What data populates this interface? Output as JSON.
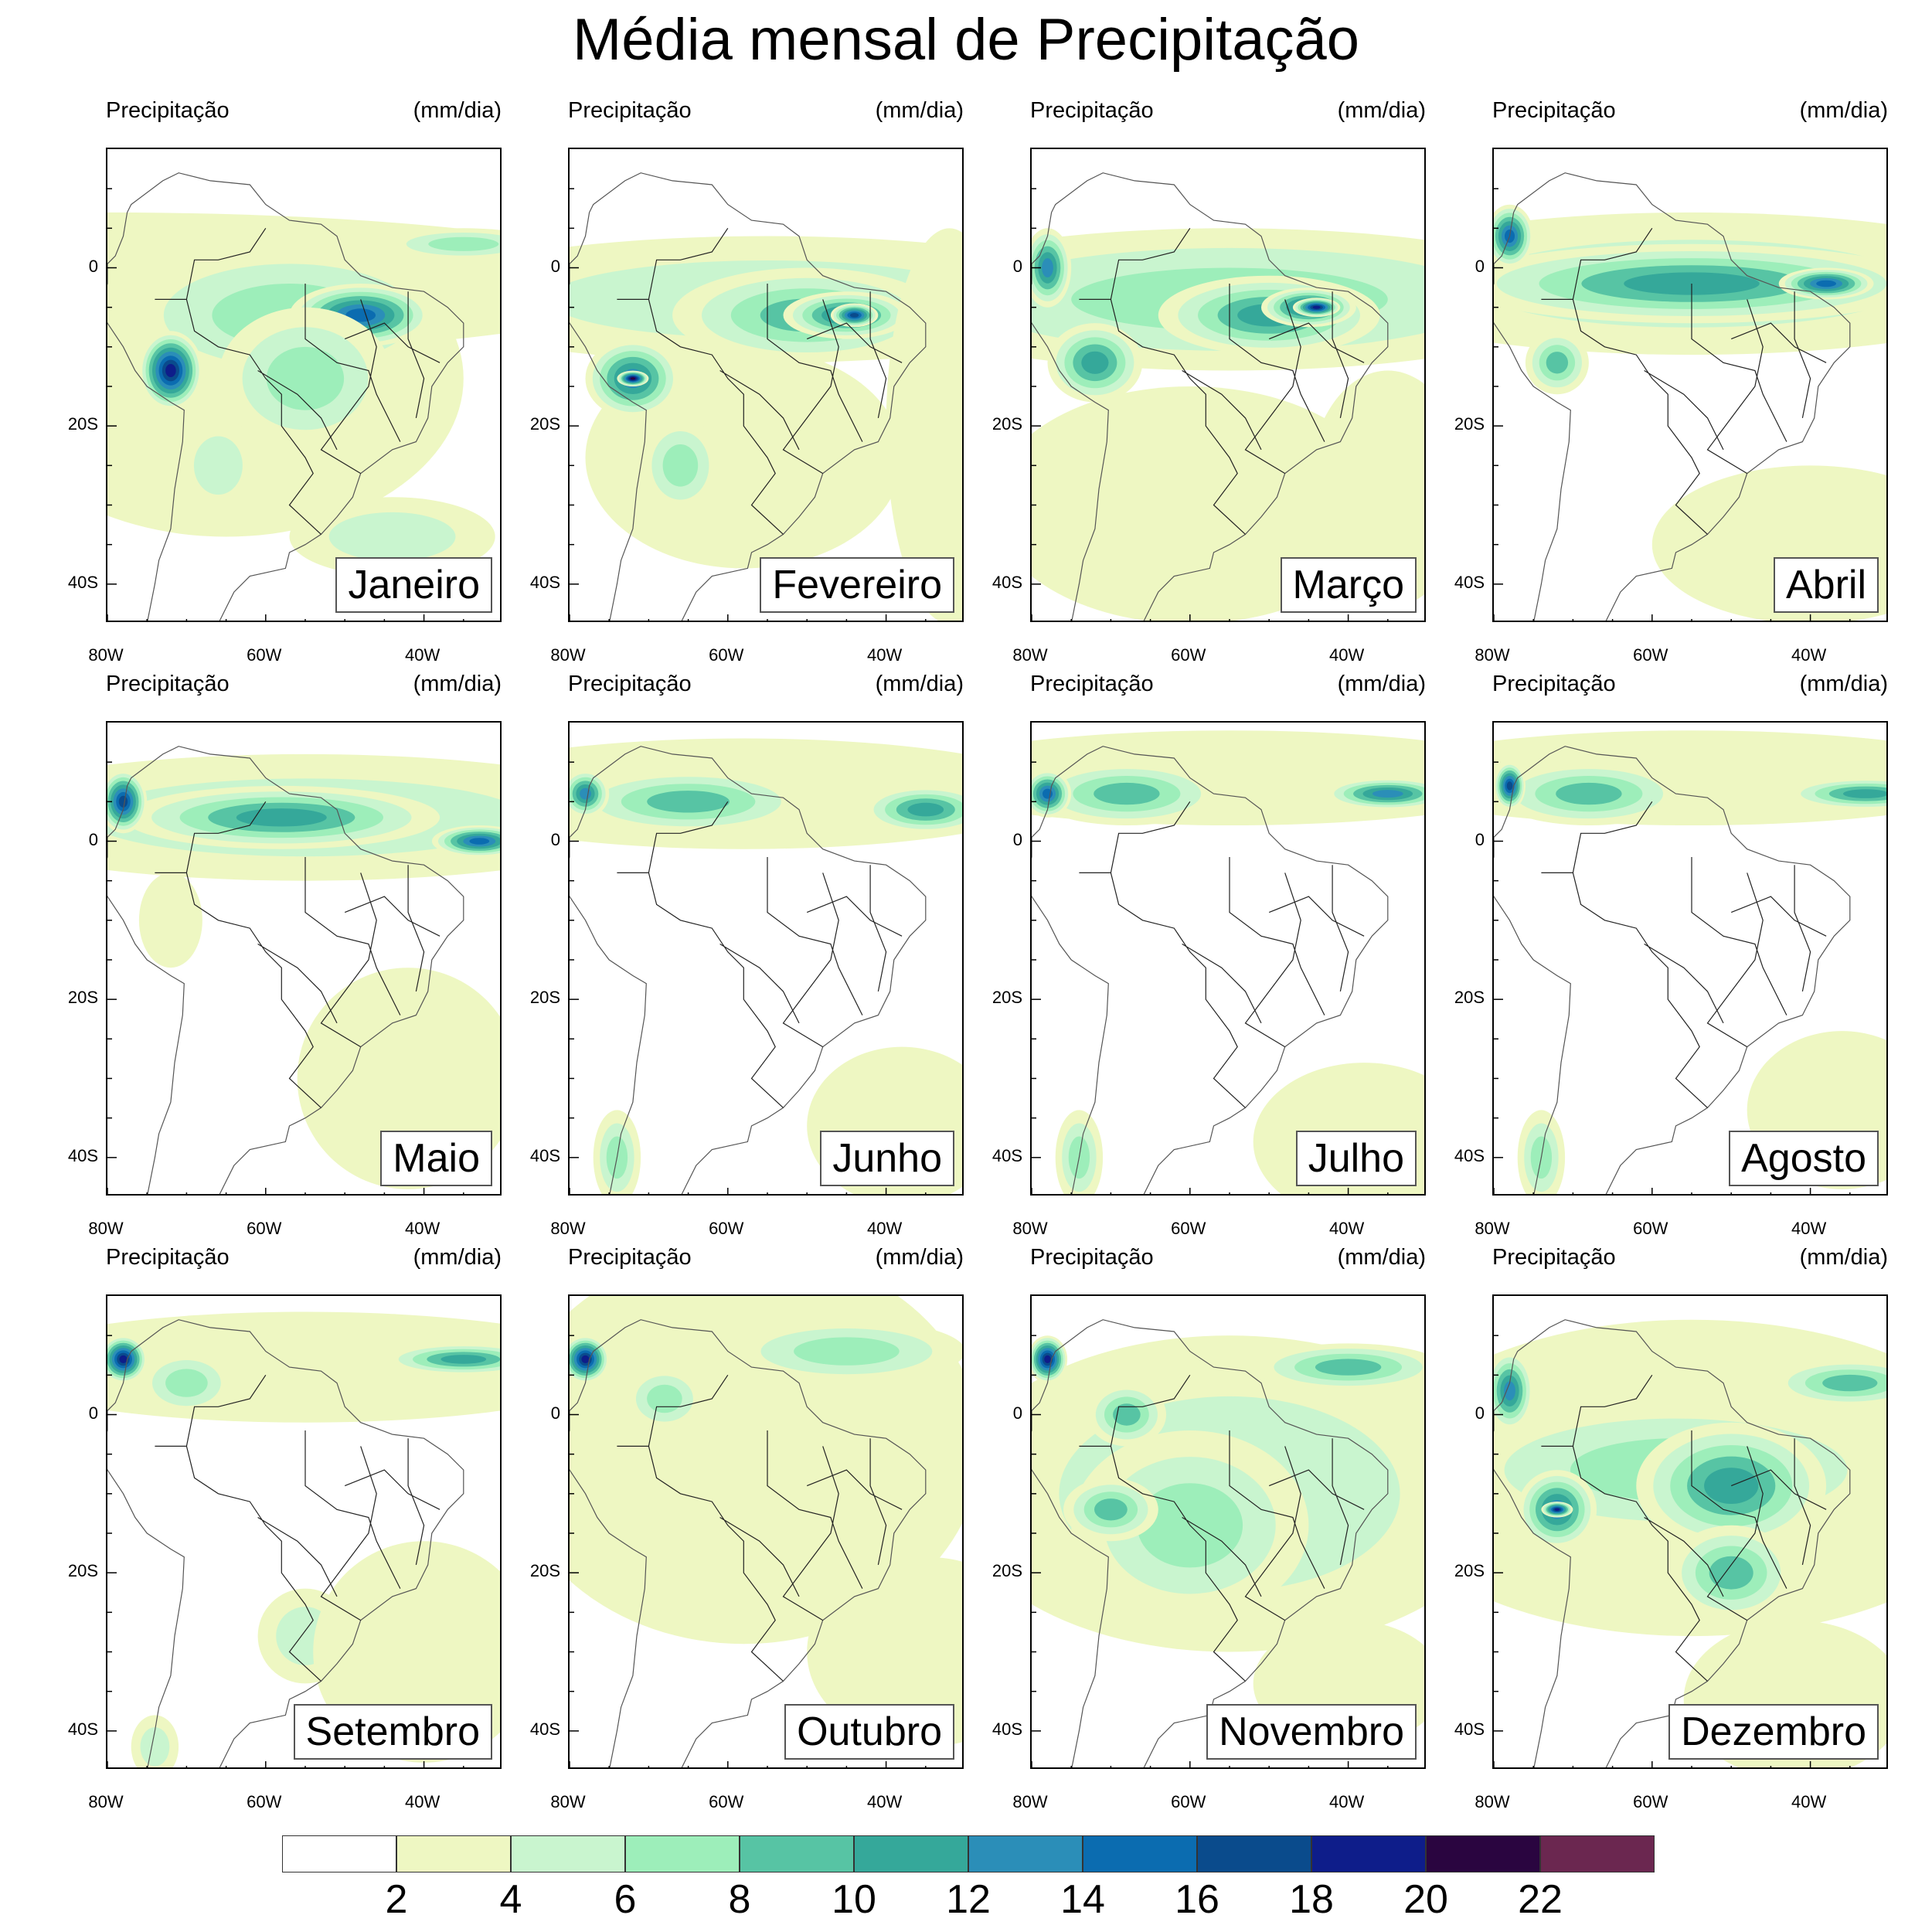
{
  "title": "Média mensal de Precipitação",
  "panel_left_title": "Precipitação",
  "panel_right_title": "(mm/dia)",
  "y_ticks": [
    "0",
    "20S",
    "40S"
  ],
  "x_ticks": [
    "80W",
    "60W",
    "40W"
  ],
  "months": [
    "Janeiro",
    "Fevereiro",
    "Março",
    "Abril",
    "Maio",
    "Junho",
    "Julho",
    "Agosto",
    "Setembro",
    "Outubro",
    "Novembro",
    "Dezembro"
  ],
  "colorbar": {
    "labels": [
      "2",
      "4",
      "6",
      "8",
      "10",
      "12",
      "14",
      "16",
      "18",
      "20",
      "22"
    ],
    "colors": [
      "#ffffff",
      "#eef7c2",
      "#c9f5cf",
      "#9deeba",
      "#57c4a4",
      "#35a89a",
      "#2b8eb8",
      "#0b6cb0",
      "#0a4b8c",
      "#0e1d8a",
      "#2a0540",
      "#6b2750"
    ]
  },
  "axis_extent": {
    "lon": [
      "80W",
      "30W"
    ],
    "lat": [
      "15N",
      "45S"
    ]
  }
}
